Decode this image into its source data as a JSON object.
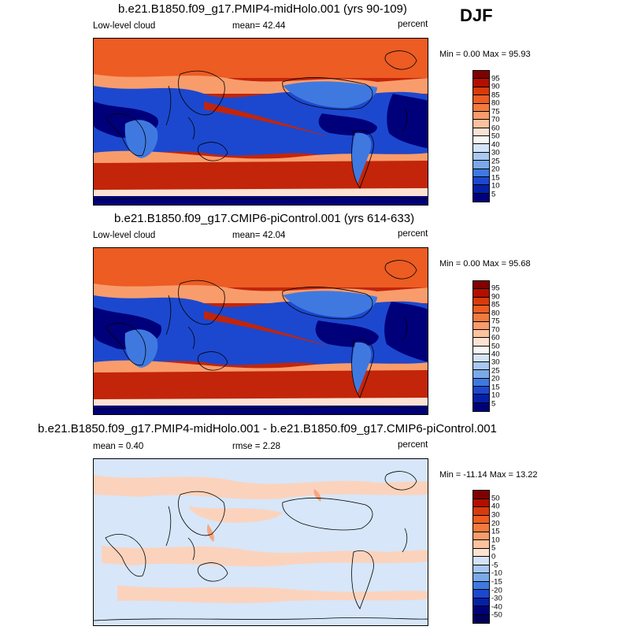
{
  "season": "DJF",
  "panels": [
    {
      "title": "b.e21.B1850.f09_g17.PMIP4-midHolo.001 (yrs 90-109)",
      "left_label": "Low-level cloud",
      "center_label": "mean=  42.44",
      "right_label": "percent",
      "stats": "Min =   0.00 Max =  95.93",
      "colorbar": {
        "labels": [
          "95",
          "90",
          "85",
          "80",
          "75",
          "70",
          "60",
          "50",
          "40",
          "30",
          "25",
          "20",
          "15",
          "10",
          "5"
        ],
        "colors": [
          "#800000",
          "#b30e00",
          "#d93a0b",
          "#ec5c23",
          "#f37a3e",
          "#f99c6b",
          "#fcc19e",
          "#fde2d3",
          "#f7f7f7",
          "#d4e3f7",
          "#a8c8f0",
          "#7aa9e8",
          "#3f79e0",
          "#1c48cf",
          "#0420a8",
          "#00007a"
        ]
      }
    },
    {
      "title": "b.e21.B1850.f09_g17.CMIP6-piControl.001 (yrs 614-633)",
      "left_label": "Low-level cloud",
      "center_label": "mean=  42.04",
      "right_label": "percent",
      "stats": "Min =   0.00 Max =  95.68",
      "colorbar": {
        "labels": [
          "95",
          "90",
          "85",
          "80",
          "75",
          "70",
          "60",
          "50",
          "40",
          "30",
          "25",
          "20",
          "15",
          "10",
          "5"
        ],
        "colors": [
          "#800000",
          "#b30e00",
          "#d93a0b",
          "#ec5c23",
          "#f37a3e",
          "#f99c6b",
          "#fcc19e",
          "#fde2d3",
          "#f7f7f7",
          "#d4e3f7",
          "#a8c8f0",
          "#7aa9e8",
          "#3f79e0",
          "#1c48cf",
          "#0420a8",
          "#00007a"
        ]
      }
    },
    {
      "title": "b.e21.B1850.f09_g17.PMIP4-midHolo.001 - b.e21.B1850.f09_g17.CMIP6-piControl.001",
      "left_label": "mean =   0.40",
      "center_label": "rmse =   2.28",
      "right_label": "percent",
      "stats": "Min = -11.14 Max =  13.22",
      "colorbar": {
        "labels": [
          "50",
          "40",
          "30",
          "20",
          "15",
          "10",
          "5",
          "0",
          "-5",
          "-10",
          "-15",
          "-20",
          "-30",
          "-40",
          "-50"
        ],
        "colors": [
          "#800000",
          "#b30e00",
          "#d93a0b",
          "#ec5c23",
          "#f37a3e",
          "#f99c6b",
          "#fcc19e",
          "#fde2d3",
          "#d4e3f7",
          "#a8c8f0",
          "#7aa9e8",
          "#3f79e0",
          "#1c48cf",
          "#0420a8",
          "#00007a",
          "#00005a"
        ]
      }
    }
  ],
  "map_palette": {
    "ocean_high": "#c2250a",
    "ocean_midhigh": "#ec5c23",
    "ocean_mid": "#f99c6b",
    "ocean_light": "#fde2d3",
    "low": "#1c48cf",
    "lowest": "#00007a",
    "land_blue": "#3f79e0",
    "diff_base": "#d7e6f8",
    "diff_pos": "#fbd3bd",
    "diff_pos2": "#f7a781",
    "coast": "#000000"
  }
}
